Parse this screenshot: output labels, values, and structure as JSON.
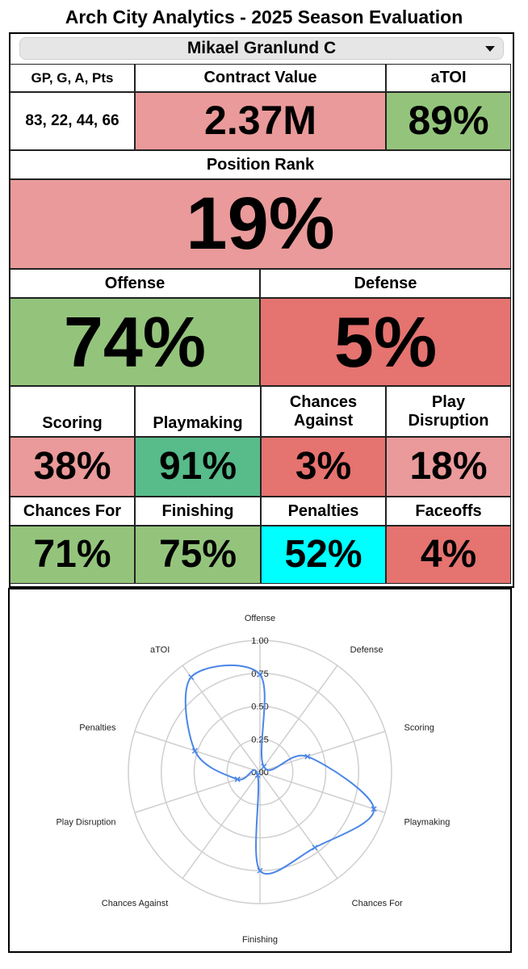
{
  "title": "Arch City Analytics - 2025 Season Evaluation",
  "player": {
    "selected": "Mikael Granlund C"
  },
  "summary": {
    "stats_label": "GP, G, A, Pts",
    "stats_value": "83, 22, 44, 66",
    "contract_label": "Contract Value",
    "contract_value": "2.37M",
    "atoi_label": "aTOI",
    "atoi_value": "89%"
  },
  "position_rank": {
    "label": "Position Rank",
    "value": "19%"
  },
  "offense": {
    "label": "Offense",
    "value": "74%"
  },
  "defense": {
    "label": "Defense",
    "value": "5%"
  },
  "metrics_row1": [
    {
      "label": "Scoring",
      "value": "38%"
    },
    {
      "label": "Playmaking",
      "value": "91%"
    },
    {
      "label": "Chances Against",
      "value": "3%"
    },
    {
      "label": "Play Disruption",
      "value": "18%"
    }
  ],
  "metrics_row2": [
    {
      "label": "Chances For",
      "value": "71%"
    },
    {
      "label": "Finishing",
      "value": "75%"
    },
    {
      "label": "Penalties",
      "value": "52%"
    },
    {
      "label": "Faceoffs",
      "value": "4%"
    }
  ],
  "colors": {
    "light_red": "#ea9a9a",
    "red": "#e57370",
    "green": "#94c47c",
    "teal_green": "#57bb8a",
    "cyan": "#00ffff",
    "radar_line": "#4a86e8",
    "grid": "#cfcfcf"
  },
  "chart_data": {
    "type": "radar",
    "categories": [
      "Offense",
      "Defense",
      "Scoring",
      "Playmaking",
      "Chances For",
      "Finishing",
      "Chances Against",
      "Play Disruption",
      "Penalties",
      "aTOI"
    ],
    "values": [
      0.74,
      0.05,
      0.38,
      0.91,
      0.71,
      0.75,
      0.03,
      0.18,
      0.52,
      0.89
    ],
    "rticks": [
      "0.00",
      "0.25",
      "0.50",
      "0.75",
      "1.00"
    ],
    "rlim": [
      0,
      1
    ]
  }
}
